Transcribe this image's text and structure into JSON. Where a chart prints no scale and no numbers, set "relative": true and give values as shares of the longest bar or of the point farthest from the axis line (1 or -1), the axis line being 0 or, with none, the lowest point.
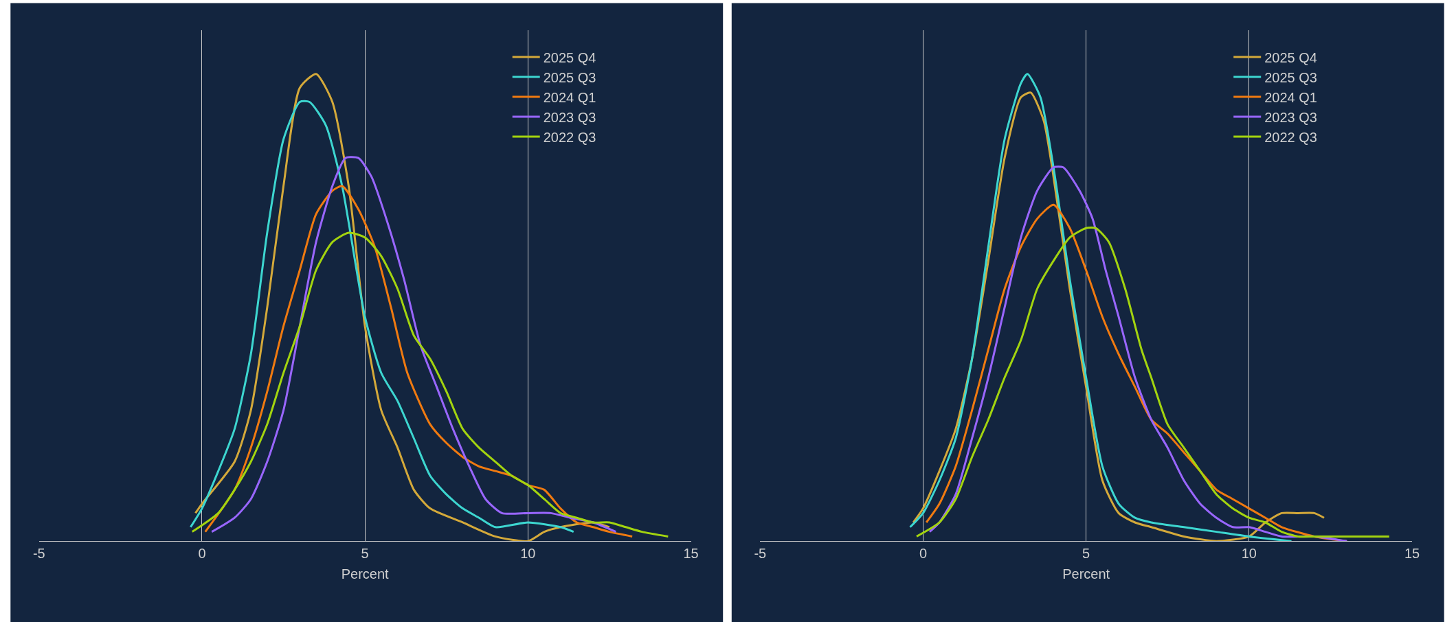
{
  "chart_data": [
    {
      "type": "line",
      "relative": true,
      "xlabel": "Percent",
      "xlim": [
        -5,
        15
      ],
      "xticks": [
        -5,
        0,
        5,
        10,
        15
      ],
      "grid": "x",
      "legend": "top right",
      "tick_labels": "x",
      "series": [
        {
          "name": "2025 Q4",
          "color": "#d4a93a",
          "x": [
            -0.2,
            0,
            1,
            1.5,
            2,
            2.5,
            3,
            3.5,
            4,
            4.5,
            5,
            5.5,
            6,
            6.5,
            7,
            8,
            9,
            10,
            10.5,
            11,
            12,
            12.5
          ],
          "values": [
            0.06,
            0.08,
            0.17,
            0.28,
            0.5,
            0.76,
            0.97,
            1,
            0.94,
            0.76,
            0.46,
            0.28,
            0.2,
            0.11,
            0.07,
            0.04,
            0.01,
            0,
            0.02,
            0.03,
            0.04,
            0.03
          ]
        },
        {
          "name": "2025 Q3",
          "color": "#3dd6d0",
          "x": [
            -0.35,
            0,
            0.5,
            1,
            1.5,
            2,
            2.5,
            3,
            3.3,
            3.8,
            4.3,
            5,
            5.5,
            6,
            6.5,
            7,
            7.5,
            8,
            8.5,
            9,
            10,
            11,
            11.4
          ],
          "values": [
            0.03,
            0.07,
            0.15,
            0.24,
            0.4,
            0.66,
            0.86,
            0.94,
            0.94,
            0.89,
            0.76,
            0.48,
            0.36,
            0.3,
            0.22,
            0.14,
            0.1,
            0.07,
            0.05,
            0.03,
            0.04,
            0.03,
            0.02
          ]
        },
        {
          "name": "2024 Q1",
          "color": "#f07a10",
          "x": [
            0.1,
            1,
            1.5,
            2,
            2.5,
            3,
            3.5,
            4,
            4.3,
            4.8,
            5.3,
            5.8,
            6.3,
            7,
            7.5,
            8,
            8.5,
            9,
            9.5,
            10,
            10.5,
            11,
            11.5,
            12,
            12.5,
            13.2
          ],
          "values": [
            0.02,
            0.11,
            0.2,
            0.32,
            0.46,
            0.58,
            0.7,
            0.75,
            0.76,
            0.71,
            0.63,
            0.5,
            0.36,
            0.25,
            0.21,
            0.18,
            0.16,
            0.15,
            0.14,
            0.12,
            0.11,
            0.07,
            0.04,
            0.03,
            0.02,
            0.01
          ]
        },
        {
          "name": "2023 Q3",
          "color": "#9966ff",
          "x": [
            0.3,
            1,
            1.5,
            2,
            2.5,
            3,
            3.5,
            4,
            4.4,
            4.8,
            5.2,
            5.7,
            6.2,
            6.7,
            7.2,
            7.7,
            8.2,
            8.7,
            9.2,
            10,
            10.7,
            11.3,
            12,
            12.7
          ],
          "values": [
            0.02,
            0.05,
            0.09,
            0.17,
            0.28,
            0.46,
            0.64,
            0.76,
            0.82,
            0.82,
            0.78,
            0.68,
            0.56,
            0.42,
            0.33,
            0.24,
            0.16,
            0.09,
            0.06,
            0.06,
            0.06,
            0.05,
            0.04,
            0.02
          ]
        },
        {
          "name": "2022 Q3",
          "color": "#a3d40f",
          "x": [
            -0.3,
            0.5,
            1,
            1.5,
            2,
            2.5,
            3,
            3.5,
            4,
            4.5,
            5,
            5.5,
            6,
            6.5,
            7,
            7.5,
            8,
            8.5,
            9,
            9.5,
            10,
            10.5,
            11,
            11.5,
            12,
            12.5,
            13,
            13.5,
            14.3
          ],
          "values": [
            0.02,
            0.06,
            0.11,
            0.17,
            0.25,
            0.36,
            0.46,
            0.58,
            0.64,
            0.66,
            0.65,
            0.61,
            0.54,
            0.44,
            0.39,
            0.32,
            0.24,
            0.2,
            0.17,
            0.14,
            0.12,
            0.09,
            0.06,
            0.05,
            0.04,
            0.04,
            0.03,
            0.02,
            0.01
          ]
        }
      ]
    },
    {
      "type": "line",
      "relative": true,
      "xlabel": "Percent",
      "xlim": [
        -5,
        15
      ],
      "xticks": [
        -5,
        0,
        5,
        10,
        15
      ],
      "grid": "x",
      "legend": "top right",
      "tick_labels": "x",
      "series": [
        {
          "name": "2025 Q4",
          "color": "#d4a93a",
          "x": [
            -0.3,
            0,
            0.5,
            1,
            1.5,
            2,
            2.5,
            3,
            3.3,
            3.7,
            4,
            4.5,
            5,
            5.5,
            6,
            6.5,
            7,
            8,
            9,
            10,
            10.5,
            11,
            11.5,
            12,
            12.3
          ],
          "values": [
            0.04,
            0.07,
            0.15,
            0.24,
            0.39,
            0.6,
            0.82,
            0.95,
            0.96,
            0.9,
            0.78,
            0.54,
            0.33,
            0.13,
            0.06,
            0.04,
            0.03,
            0.01,
            0,
            0.01,
            0.04,
            0.06,
            0.06,
            0.06,
            0.05
          ]
        },
        {
          "name": "2025 Q3",
          "color": "#3dd6d0",
          "x": [
            -0.4,
            0,
            0.5,
            1,
            1.5,
            2,
            2.5,
            3,
            3.2,
            3.6,
            4,
            4.5,
            5,
            5.5,
            6,
            6.5,
            7,
            8,
            9,
            10,
            11.3
          ],
          "values": [
            0.03,
            0.06,
            0.13,
            0.22,
            0.39,
            0.63,
            0.86,
            0.98,
            1,
            0.95,
            0.8,
            0.56,
            0.35,
            0.16,
            0.08,
            0.05,
            0.04,
            0.03,
            0.02,
            0.01,
            0
          ]
        },
        {
          "name": "2024 Q1",
          "color": "#f07a10",
          "x": [
            0.1,
            0.5,
            1,
            1.5,
            2,
            2.5,
            3,
            3.5,
            4,
            4.5,
            5,
            5.5,
            6,
            6.5,
            7,
            7.5,
            8,
            8.5,
            9,
            9.5,
            10,
            10.5,
            11,
            12,
            13
          ],
          "values": [
            0.04,
            0.08,
            0.16,
            0.28,
            0.41,
            0.54,
            0.63,
            0.69,
            0.72,
            0.67,
            0.58,
            0.48,
            0.4,
            0.33,
            0.26,
            0.23,
            0.19,
            0.15,
            0.11,
            0.09,
            0.07,
            0.05,
            0.03,
            0.01,
            0
          ]
        },
        {
          "name": "2023 Q3",
          "color": "#9966ff",
          "x": [
            0.2,
            0.5,
            1,
            1.5,
            2,
            2.5,
            3,
            3.5,
            4,
            4.3,
            4.8,
            5.2,
            5.6,
            6,
            6.5,
            7,
            7.5,
            8,
            8.5,
            9,
            9.5,
            10,
            10.5,
            11,
            12,
            13
          ],
          "values": [
            0.02,
            0.04,
            0.1,
            0.22,
            0.35,
            0.5,
            0.65,
            0.75,
            0.8,
            0.8,
            0.75,
            0.69,
            0.58,
            0.48,
            0.35,
            0.26,
            0.2,
            0.13,
            0.08,
            0.05,
            0.03,
            0.03,
            0.02,
            0.01,
            0.01,
            0
          ]
        },
        {
          "name": "2022 Q3",
          "color": "#a3d40f",
          "x": [
            -0.2,
            0.5,
            1,
            1.5,
            2,
            2.5,
            3,
            3.5,
            4,
            4.5,
            5,
            5.3,
            5.7,
            6.2,
            6.7,
            7,
            7.5,
            8,
            8.5,
            9,
            9.5,
            10,
            10.5,
            11,
            11.5,
            12,
            13,
            14.3
          ],
          "values": [
            0.01,
            0.04,
            0.09,
            0.18,
            0.26,
            0.35,
            0.43,
            0.54,
            0.6,
            0.65,
            0.67,
            0.67,
            0.64,
            0.54,
            0.41,
            0.35,
            0.25,
            0.2,
            0.15,
            0.1,
            0.07,
            0.05,
            0.04,
            0.02,
            0.01,
            0.01,
            0.01,
            0.01
          ]
        }
      ]
    }
  ]
}
